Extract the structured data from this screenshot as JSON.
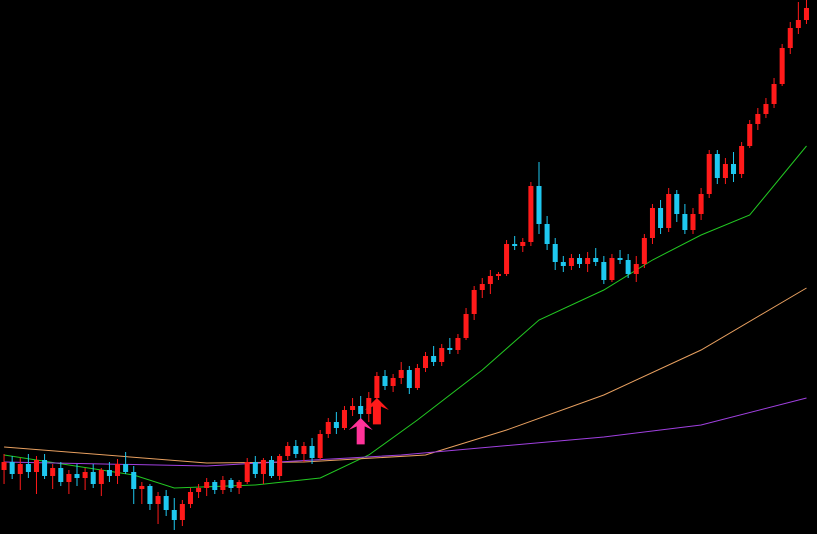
{
  "chart_data": {
    "type": "candlestick",
    "up_color": "#ff1a1a",
    "down_color": "#1ec8f0",
    "xlim": [
      -0.5,
      100.3
    ],
    "ylim": [
      0,
      534
    ],
    "ohlc": [
      [
        64,
        80,
        50,
        72
      ],
      [
        72,
        78,
        55,
        60
      ],
      [
        60,
        76,
        44,
        70
      ],
      [
        70,
        80,
        56,
        62
      ],
      [
        62,
        78,
        40,
        74
      ],
      [
        74,
        80,
        55,
        58
      ],
      [
        58,
        70,
        45,
        66
      ],
      [
        66,
        72,
        48,
        52
      ],
      [
        52,
        64,
        40,
        60
      ],
      [
        60,
        70,
        48,
        56
      ],
      [
        56,
        66,
        44,
        62
      ],
      [
        62,
        70,
        46,
        50
      ],
      [
        50,
        66,
        38,
        64
      ],
      [
        64,
        72,
        52,
        58
      ],
      [
        58,
        75,
        50,
        70
      ],
      [
        70,
        82,
        60,
        62
      ],
      [
        62,
        68,
        30,
        45
      ],
      [
        45,
        52,
        30,
        48
      ],
      [
        48,
        50,
        24,
        30
      ],
      [
        30,
        42,
        10,
        38
      ],
      [
        38,
        44,
        18,
        24
      ],
      [
        24,
        36,
        4,
        14
      ],
      [
        14,
        34,
        8,
        30
      ],
      [
        30,
        46,
        26,
        42
      ],
      [
        42,
        50,
        36,
        46
      ],
      [
        46,
        56,
        38,
        52
      ],
      [
        52,
        54,
        40,
        44
      ],
      [
        44,
        58,
        40,
        54
      ],
      [
        54,
        56,
        42,
        46
      ],
      [
        46,
        54,
        40,
        52
      ],
      [
        52,
        76,
        50,
        72
      ],
      [
        72,
        78,
        56,
        60
      ],
      [
        60,
        76,
        50,
        74
      ],
      [
        74,
        78,
        56,
        58
      ],
      [
        58,
        80,
        54,
        78
      ],
      [
        78,
        92,
        74,
        88
      ],
      [
        88,
        94,
        76,
        80
      ],
      [
        80,
        92,
        72,
        88
      ],
      [
        88,
        96,
        70,
        76
      ],
      [
        76,
        104,
        74,
        100
      ],
      [
        100,
        116,
        96,
        112
      ],
      [
        112,
        122,
        100,
        106
      ],
      [
        106,
        128,
        104,
        124
      ],
      [
        124,
        136,
        118,
        128
      ],
      [
        128,
        138,
        114,
        120
      ],
      [
        120,
        142,
        112,
        136
      ],
      [
        136,
        162,
        134,
        158
      ],
      [
        158,
        164,
        144,
        148
      ],
      [
        148,
        160,
        142,
        156
      ],
      [
        156,
        172,
        150,
        164
      ],
      [
        164,
        168,
        140,
        146
      ],
      [
        146,
        170,
        144,
        166
      ],
      [
        166,
        182,
        162,
        178
      ],
      [
        178,
        188,
        168,
        172
      ],
      [
        172,
        190,
        168,
        186
      ],
      [
        186,
        196,
        180,
        184
      ],
      [
        184,
        200,
        180,
        196
      ],
      [
        196,
        226,
        194,
        220
      ],
      [
        220,
        248,
        214,
        244
      ],
      [
        244,
        256,
        236,
        250
      ],
      [
        250,
        264,
        240,
        258
      ],
      [
        258,
        262,
        254,
        260
      ],
      [
        260,
        294,
        258,
        290
      ],
      [
        290,
        298,
        284,
        288
      ],
      [
        288,
        296,
        282,
        292
      ],
      [
        292,
        352,
        288,
        348
      ],
      [
        348,
        372,
        300,
        310
      ],
      [
        310,
        318,
        284,
        290
      ],
      [
        290,
        296,
        264,
        272
      ],
      [
        272,
        278,
        262,
        268
      ],
      [
        268,
        280,
        264,
        276
      ],
      [
        276,
        280,
        266,
        270
      ],
      [
        270,
        282,
        262,
        276
      ],
      [
        276,
        286,
        268,
        272
      ],
      [
        272,
        278,
        250,
        254
      ],
      [
        254,
        280,
        252,
        276
      ],
      [
        276,
        284,
        270,
        274
      ],
      [
        274,
        280,
        256,
        260
      ],
      [
        260,
        278,
        252,
        270
      ],
      [
        270,
        300,
        266,
        296
      ],
      [
        296,
        330,
        290,
        326
      ],
      [
        326,
        334,
        300,
        306
      ],
      [
        306,
        346,
        302,
        340
      ],
      [
        340,
        344,
        312,
        320
      ],
      [
        320,
        330,
        300,
        304
      ],
      [
        304,
        326,
        300,
        320
      ],
      [
        320,
        346,
        314,
        340
      ],
      [
        340,
        384,
        336,
        380
      ],
      [
        380,
        384,
        350,
        356
      ],
      [
        356,
        376,
        350,
        370
      ],
      [
        370,
        382,
        352,
        360
      ],
      [
        360,
        392,
        356,
        388
      ],
      [
        388,
        414,
        386,
        410
      ],
      [
        410,
        426,
        404,
        420
      ],
      [
        420,
        436,
        416,
        430
      ],
      [
        430,
        456,
        426,
        450
      ],
      [
        450,
        490,
        448,
        486
      ],
      [
        486,
        512,
        480,
        506
      ],
      [
        506,
        532,
        500,
        514
      ],
      [
        514,
        534,
        510,
        526
      ]
    ],
    "lines": [
      {
        "color": "#22c822",
        "x": [
          0,
          16,
          21,
          31,
          39,
          45,
          51,
          59,
          66,
          74,
          80,
          86,
          92,
          99
        ],
        "values": [
          79,
          59,
          46,
          49,
          56,
          79,
          114,
          164,
          214,
          244,
          274,
          299,
          319,
          388
        ]
      },
      {
        "color": "#e8a060",
        "x": [
          0,
          25,
          37,
          52,
          62,
          74,
          86,
          99
        ],
        "values": [
          87,
          71,
          72,
          79,
          104,
          139,
          184,
          246
        ]
      },
      {
        "color": "#a040e0",
        "x": [
          0,
          25,
          49,
          74,
          86,
          99
        ],
        "values": [
          72,
          68,
          79,
          97,
          109,
          136
        ]
      }
    ],
    "markers": [
      {
        "x": 44,
        "y": 116,
        "color": "#ff3399"
      },
      {
        "x": 46,
        "y": 136,
        "color": "#ff1a1a"
      }
    ]
  }
}
